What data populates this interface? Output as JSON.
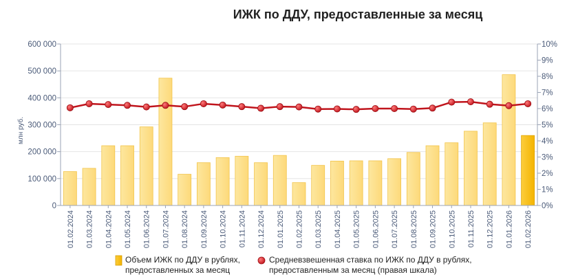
{
  "chart_data": {
    "type": "bar",
    "title": "ИЖК по ДДУ, предоставленные за месяц",
    "ylabel": "млн руб.",
    "ylim": [
      0,
      600000
    ],
    "y2lim": [
      0,
      10
    ],
    "y_ticks": [
      "0",
      "100 000",
      "200 000",
      "300 000",
      "400 000",
      "500 000",
      "600 000"
    ],
    "y2_ticks": [
      "0%",
      "1%",
      "2%",
      "3%",
      "4%",
      "5%",
      "6%",
      "7%",
      "8%",
      "9%",
      "10%"
    ],
    "grid": true,
    "legend_position": "bottom",
    "categories": [
      "01.02.2024",
      "01.03.2024",
      "01.04.2024",
      "01.05.2024",
      "01.06.2024",
      "01.07.2024",
      "01.08.2024",
      "01.09.2024",
      "01.10.2024",
      "01.11.2024",
      "01.12.2024",
      "01.01.2025",
      "01.02.2025",
      "01.03.2025",
      "01.04.2025",
      "01.05.2025",
      "01.06.2025",
      "01.07.2025",
      "01.08.2025",
      "01.09.2025",
      "01.10.2025",
      "01.11.2025",
      "01.12.2025",
      "01.01.2026",
      "01.02.2026"
    ],
    "series": [
      {
        "name": "Объем ИЖК по ДДУ в рублях, предоставленных за месяц",
        "legend_lines": [
          "Объем ИЖК по ДДУ в рублях,",
          "предоставленных за месяц"
        ],
        "type": "bar",
        "axis": "left",
        "color": "#fde59a",
        "edge_color": "#f2c44a",
        "highlight_last_color": "#f9bd12",
        "values": [
          126000,
          138000,
          222000,
          222000,
          292000,
          473000,
          116000,
          159000,
          178000,
          183000,
          159000,
          186000,
          85000,
          149000,
          165000,
          166000,
          166000,
          174000,
          197000,
          222000,
          233000,
          276000,
          307000,
          486000,
          260000
        ]
      },
      {
        "name": "Средневзвешенная ставка по ИЖК по ДДУ в рублях, предоставленным за месяц (правая шкала)",
        "legend_lines": [
          "Средневзвешенная ставка по ИЖК по ДДУ в рублях,",
          "предоставленным за месяц (правая шкала)"
        ],
        "type": "line",
        "axis": "right",
        "color": "#c0141c",
        "values": [
          6.05,
          6.3,
          6.25,
          6.2,
          6.1,
          6.2,
          6.12,
          6.3,
          6.22,
          6.12,
          6.02,
          6.12,
          6.1,
          5.97,
          5.98,
          5.95,
          6.0,
          6.0,
          5.97,
          6.03,
          6.4,
          6.42,
          6.27,
          6.18,
          6.3
        ]
      }
    ]
  }
}
